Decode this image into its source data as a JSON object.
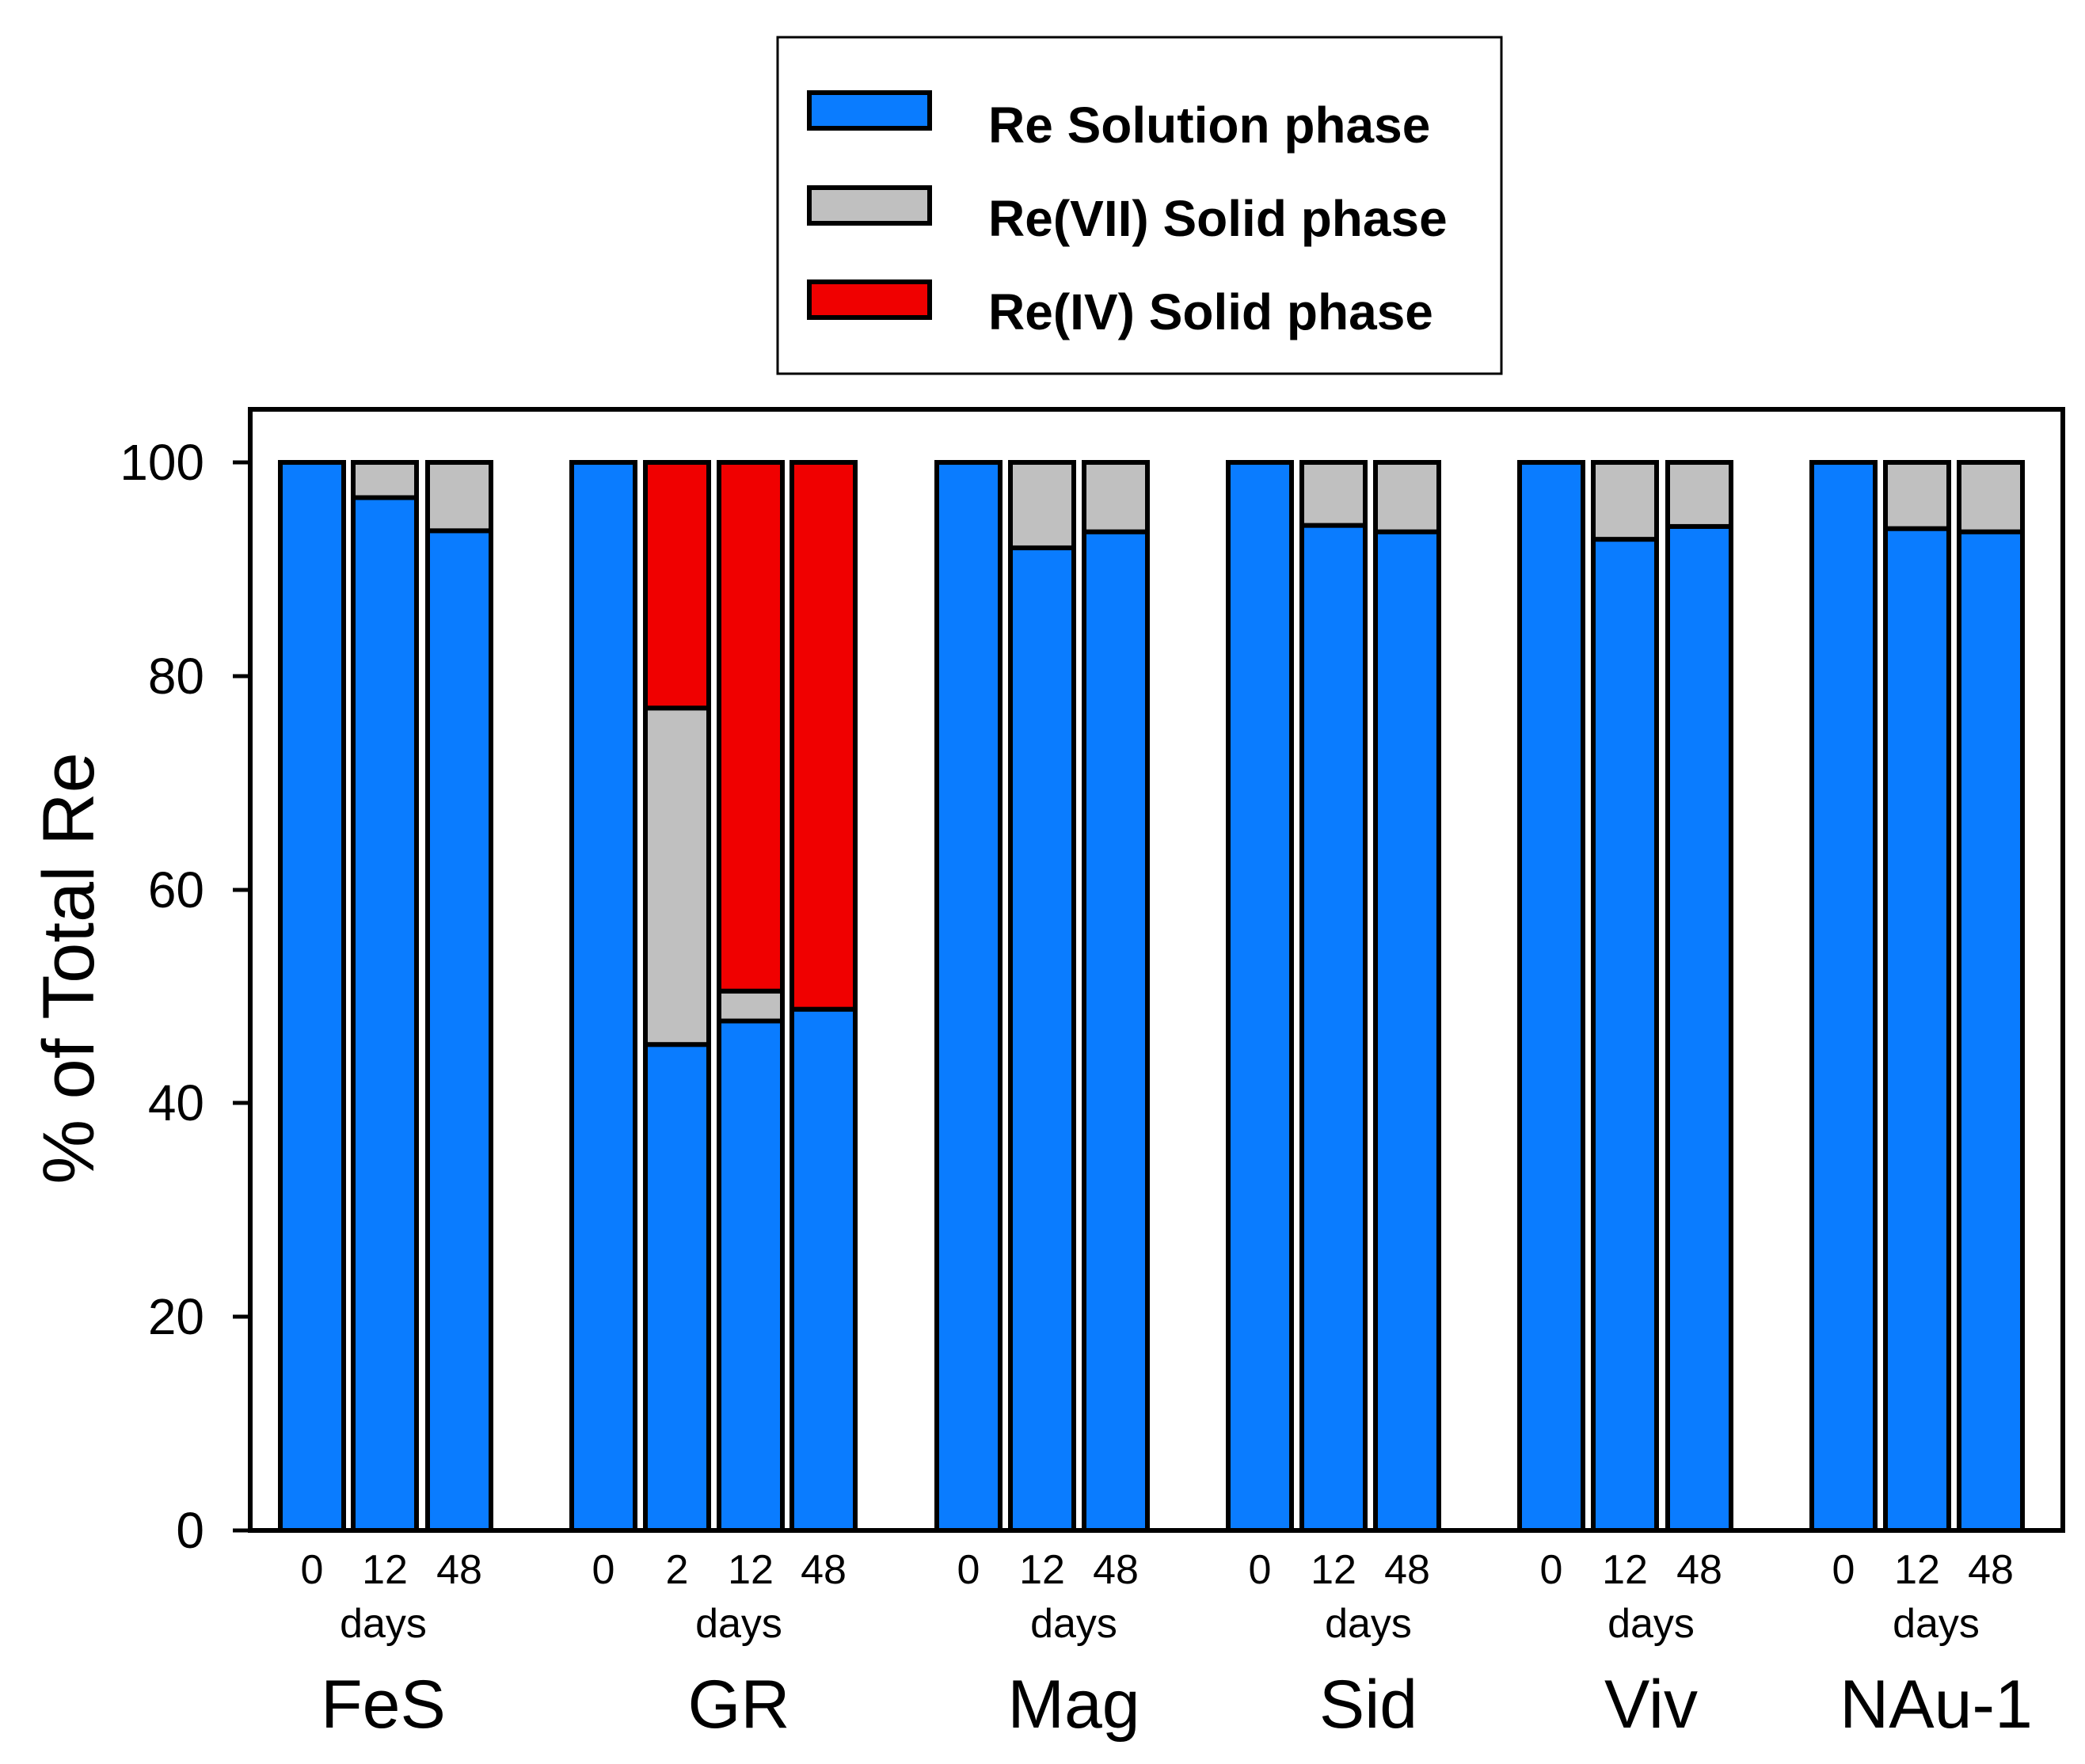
{
  "chart_data": {
    "type": "bar",
    "stacked": true,
    "ylabel": "% of Total Re",
    "ylim": [
      0,
      100
    ],
    "yticks": [
      "0",
      "20",
      "40",
      "60",
      "80",
      "100"
    ],
    "days_label": "days",
    "legend": {
      "placement": "top-center",
      "entries": [
        {
          "name": "Re Solution phase",
          "color": "#0a7cff"
        },
        {
          "name": "Re(VII) Solid phase",
          "color": "#c0c0c0"
        },
        {
          "name": "Re(IV) Solid phase",
          "color": "#f00000"
        }
      ]
    },
    "groups": [
      {
        "name": "FeS",
        "bars": [
          {
            "day": "0",
            "solution": 100,
            "re7": 0,
            "re4": 0
          },
          {
            "day": "12",
            "solution": 96.7,
            "re7": 3.3,
            "re4": 0
          },
          {
            "day": "48",
            "solution": 93.6,
            "re7": 6.4,
            "re4": 0
          }
        ]
      },
      {
        "name": "GR",
        "bars": [
          {
            "day": "0",
            "solution": 100,
            "re7": 0,
            "re4": 0
          },
          {
            "day": "2",
            "solution": 45.5,
            "re7": 31.5,
            "re4": 23
          },
          {
            "day": "12",
            "solution": 47.7,
            "re7": 2.8,
            "re4": 49.5
          },
          {
            "day": "48",
            "solution": 48.8,
            "re7": 0,
            "re4": 51.2
          }
        ]
      },
      {
        "name": "Mag",
        "bars": [
          {
            "day": "0",
            "solution": 100,
            "re7": 0,
            "re4": 0
          },
          {
            "day": "12",
            "solution": 92.0,
            "re7": 8.0,
            "re4": 0
          },
          {
            "day": "48",
            "solution": 93.5,
            "re7": 6.5,
            "re4": 0
          }
        ]
      },
      {
        "name": "Sid",
        "bars": [
          {
            "day": "0",
            "solution": 100,
            "re7": 0,
            "re4": 0
          },
          {
            "day": "12",
            "solution": 94.1,
            "re7": 5.9,
            "re4": 0
          },
          {
            "day": "48",
            "solution": 93.5,
            "re7": 6.5,
            "re4": 0
          }
        ]
      },
      {
        "name": "Viv",
        "bars": [
          {
            "day": "0",
            "solution": 100,
            "re7": 0,
            "re4": 0
          },
          {
            "day": "12",
            "solution": 92.8,
            "re7": 7.2,
            "re4": 0
          },
          {
            "day": "48",
            "solution": 94.0,
            "re7": 6.0,
            "re4": 0
          }
        ]
      },
      {
        "name": "NAu-1",
        "bars": [
          {
            "day": "0",
            "solution": 100,
            "re7": 0,
            "re4": 0
          },
          {
            "day": "12",
            "solution": 93.8,
            "re7": 6.2,
            "re4": 0
          },
          {
            "day": "48",
            "solution": 93.5,
            "re7": 6.5,
            "re4": 0
          }
        ]
      }
    ]
  }
}
